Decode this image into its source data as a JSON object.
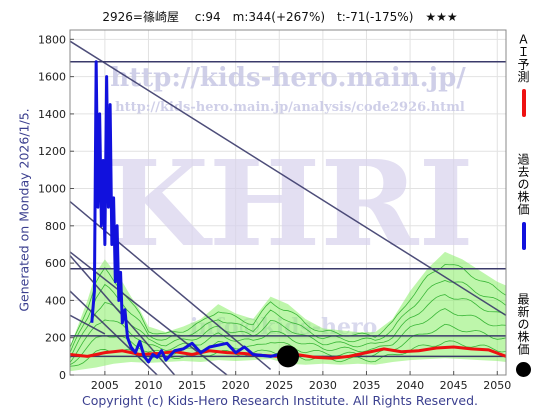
{
  "header": {
    "title": "2926=篠崎屋　 c:94　m:344(+267%)　t:-71(-175%)　★★★"
  },
  "watermark": {
    "url_big": "http://kids-hero.main.jp/",
    "url_small": "http://kids-hero.main.jp/analysis/code2926.html",
    "logo": "KHRI",
    "mail": "info@kids-hero"
  },
  "side_label": "Generated on Monday 2026/1/5.",
  "footer": "Copyright (c) Kids-Hero Research Institute. All Rights Reserved.",
  "legend": [
    {
      "label": "ＡＩ予測",
      "color": "#ee1111",
      "kind": "line"
    },
    {
      "label": "過去の株価",
      "color": "#1111dd",
      "kind": "line"
    },
    {
      "label": "最新の株価",
      "color": "#000000",
      "kind": "dot"
    }
  ],
  "chart_data": {
    "type": "line",
    "xlim": [
      2001,
      2051
    ],
    "ylim": [
      0,
      1850
    ],
    "xticks": [
      2005,
      2010,
      2015,
      2020,
      2025,
      2030,
      2035,
      2040,
      2045,
      2050
    ],
    "yticks": [
      0,
      200,
      400,
      600,
      800,
      1000,
      1200,
      1400,
      1600,
      1800
    ],
    "grid": true,
    "colors": {
      "past": "#1111dd",
      "forecast": "#ee1111",
      "band": "#88ee66",
      "band_line": "#22aa22",
      "trend": "#3a3a6a",
      "levels": "#3a3a6a",
      "latest": "#000000"
    },
    "levels": [
      1680,
      570,
      210,
      100
    ],
    "trend_lines": [
      {
        "x": [
          2001,
          2051
        ],
        "y": [
          1790,
          320
        ]
      },
      {
        "x": [
          2001,
          2024
        ],
        "y": [
          930,
          30
        ]
      },
      {
        "x": [
          2001,
          2019
        ],
        "y": [
          660,
          0
        ]
      },
      {
        "x": [
          2001,
          2013
        ],
        "y": [
          640,
          0
        ]
      },
      {
        "x": [
          2001,
          2011
        ],
        "y": [
          450,
          0
        ]
      },
      {
        "x": [
          2001,
          2005
        ],
        "y": [
          320,
          220
        ]
      }
    ],
    "band_upper": [
      [
        2001,
        150
      ],
      [
        2003,
        400
      ],
      [
        2004,
        550
      ],
      [
        2005,
        620
      ],
      [
        2006,
        560
      ],
      [
        2007,
        500
      ],
      [
        2008,
        420
      ],
      [
        2009,
        350
      ],
      [
        2010,
        260
      ],
      [
        2012,
        230
      ],
      [
        2014,
        260
      ],
      [
        2016,
        300
      ],
      [
        2018,
        380
      ],
      [
        2020,
        330
      ],
      [
        2022,
        300
      ],
      [
        2024,
        420
      ],
      [
        2026,
        380
      ],
      [
        2028,
        300
      ],
      [
        2030,
        250
      ],
      [
        2032,
        240
      ],
      [
        2034,
        230
      ],
      [
        2036,
        230
      ],
      [
        2038,
        300
      ],
      [
        2040,
        450
      ],
      [
        2042,
        570
      ],
      [
        2044,
        660
      ],
      [
        2046,
        620
      ],
      [
        2048,
        560
      ],
      [
        2050,
        500
      ],
      [
        2051,
        480
      ]
    ],
    "band_lower": [
      [
        2001,
        20
      ],
      [
        2004,
        40
      ],
      [
        2006,
        60
      ],
      [
        2008,
        70
      ],
      [
        2010,
        65
      ],
      [
        2012,
        70
      ],
      [
        2014,
        75
      ],
      [
        2016,
        70
      ],
      [
        2018,
        80
      ],
      [
        2020,
        75
      ],
      [
        2022,
        80
      ],
      [
        2024,
        85
      ],
      [
        2026,
        60
      ],
      [
        2028,
        55
      ],
      [
        2030,
        60
      ],
      [
        2032,
        55
      ],
      [
        2034,
        60
      ],
      [
        2036,
        55
      ],
      [
        2038,
        70
      ],
      [
        2040,
        80
      ],
      [
        2042,
        85
      ],
      [
        2044,
        90
      ],
      [
        2046,
        85
      ],
      [
        2048,
        80
      ],
      [
        2050,
        75
      ],
      [
        2051,
        70
      ]
    ],
    "series": [
      {
        "name": "過去の株価",
        "x": [
          2003.5,
          2003.8,
          2004.0,
          2004.2,
          2004.4,
          2004.6,
          2004.8,
          2005.0,
          2005.2,
          2005.4,
          2005.6,
          2005.8,
          2006.0,
          2006.2,
          2006.4,
          2006.6,
          2006.8,
          2007.0,
          2007.3,
          2007.6,
          2008.0,
          2008.5,
          2009.0,
          2009.5,
          2010.0,
          2010.5,
          2011.0,
          2011.5,
          2012.0,
          2013.0,
          2014.0,
          2015.0,
          2016.0,
          2017.0,
          2018.0,
          2019.0,
          2020.0,
          2021.0,
          2022.0,
          2023.0,
          2024.0,
          2025.0
        ],
        "values": [
          280,
          450,
          1680,
          900,
          1400,
          800,
          1150,
          700,
          1600,
          900,
          1450,
          700,
          950,
          500,
          800,
          400,
          550,
          280,
          350,
          200,
          150,
          120,
          180,
          100,
          70,
          110,
          95,
          130,
          80,
          130,
          140,
          170,
          120,
          150,
          160,
          170,
          120,
          150,
          110,
          105,
          100,
          110
        ]
      },
      {
        "name": "ＡＩ予測",
        "x": [
          2001,
          2003,
          2005,
          2007,
          2009,
          2011,
          2013,
          2015,
          2017,
          2019,
          2021,
          2023,
          2025,
          2027,
          2029,
          2031,
          2033,
          2035,
          2037,
          2039,
          2041,
          2043,
          2045,
          2047,
          2049,
          2051
        ],
        "values": [
          110,
          100,
          120,
          130,
          110,
          115,
          125,
          110,
          130,
          120,
          115,
          105,
          100,
          110,
          95,
          90,
          100,
          120,
          140,
          125,
          130,
          145,
          150,
          140,
          135,
          100
        ]
      }
    ],
    "latest": {
      "x": 2026,
      "y": 100
    }
  }
}
